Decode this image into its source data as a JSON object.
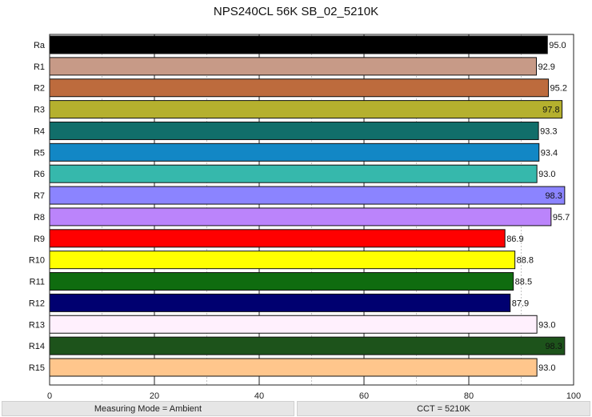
{
  "chart_data": {
    "type": "bar",
    "orientation": "horizontal",
    "title": "NPS240CL 56K SB_02_5210K",
    "categories": [
      "Ra",
      "R1",
      "R2",
      "R3",
      "R4",
      "R5",
      "R6",
      "R7",
      "R8",
      "R9",
      "R10",
      "R11",
      "R12",
      "R13",
      "R14",
      "R15"
    ],
    "values": [
      95.0,
      92.9,
      95.2,
      97.8,
      93.3,
      93.4,
      93.0,
      98.3,
      95.7,
      86.9,
      88.8,
      88.5,
      87.9,
      93.0,
      98.3,
      93.0
    ],
    "colors": [
      "#000000",
      "#c79a87",
      "#bd6b3d",
      "#b5b02e",
      "#116e6a",
      "#1287c5",
      "#36b8ac",
      "#8b84ff",
      "#bb84fb",
      "#ff0000",
      "#ffff00",
      "#0f6c0f",
      "#000070",
      "#fff0fd",
      "#1d531b",
      "#ffc68c"
    ],
    "xlim": [
      0,
      100
    ],
    "xticks": [
      0,
      20,
      40,
      60,
      80,
      100
    ],
    "grid": true
  },
  "footer": {
    "left": "Measuring Mode = Ambient",
    "right": "CCT = 5210K"
  }
}
